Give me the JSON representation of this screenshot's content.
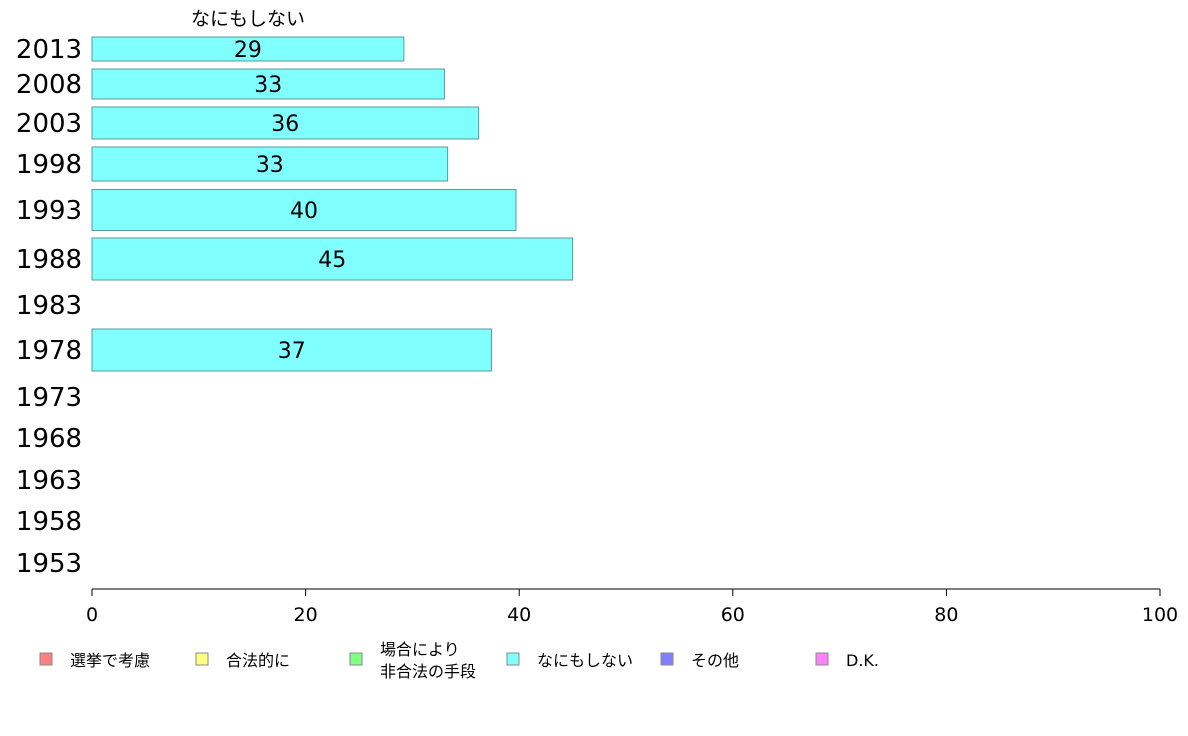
{
  "chart_data": {
    "type": "bar",
    "orientation": "horizontal",
    "title": "",
    "series_title": "なにもしない",
    "categories": [
      "2013",
      "2008",
      "2003",
      "1998",
      "1993",
      "1988",
      "1983",
      "1978",
      "1973",
      "1968",
      "1963",
      "1958",
      "1953"
    ],
    "series": [
      {
        "name": "なにもしない",
        "color": "#80ffff",
        "values": [
          29.2,
          33.0,
          36.2,
          33.3,
          39.7,
          45.0,
          null,
          37.4,
          null,
          null,
          null,
          null,
          null
        ],
        "labels": [
          "29",
          "33",
          "36",
          "33",
          "40",
          "45",
          "",
          "37",
          "",
          "",
          "",
          "",
          ""
        ]
      }
    ],
    "xlim": [
      0,
      100
    ],
    "xticks": [
      "0",
      "20",
      "40",
      "60",
      "80",
      "100"
    ],
    "grid": false,
    "legend": {
      "placement": "bottom",
      "items": [
        {
          "lines": [
            "選挙で考慮"
          ],
          "color": "#ff8080"
        },
        {
          "lines": [
            "合法的に"
          ],
          "color": "#ffff80"
        },
        {
          "lines": [
            "場合により",
            "非合法の手段"
          ],
          "color": "#80ff80"
        },
        {
          "lines": [
            "なにもしない"
          ],
          "color": "#80ffff"
        },
        {
          "lines": [
            "その他"
          ],
          "color": "#8080ff"
        },
        {
          "lines": [
            "D.K."
          ],
          "color": "#ff80ff"
        }
      ]
    }
  }
}
